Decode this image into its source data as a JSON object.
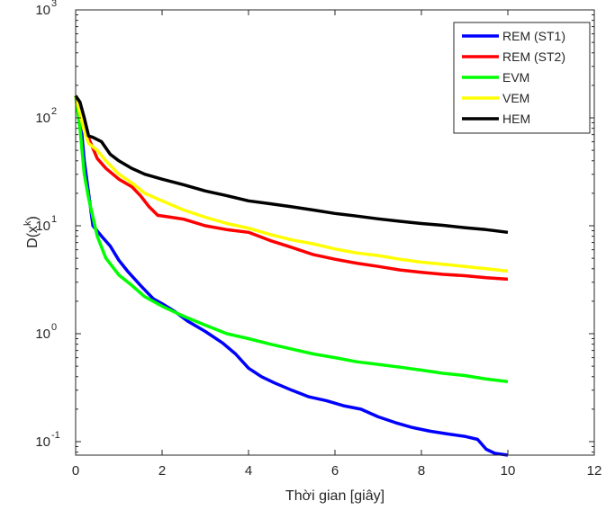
{
  "chart_data": {
    "type": "line",
    "title": "",
    "xlabel": "Thời gian [giây]",
    "ylabel_base": "D(x",
    "ylabel_sup": "k",
    "ylabel_close": ")",
    "yscale": "log",
    "xlim": [
      0,
      12
    ],
    "ylim": [
      0.075,
      1000
    ],
    "x_ticks": [
      "0",
      "2",
      "4",
      "6",
      "8",
      "10",
      "12"
    ],
    "x_tick_values": [
      0,
      2,
      4,
      6,
      8,
      10,
      12
    ],
    "y_ticks": [
      {
        "value": 0.1,
        "base": "10",
        "exp": "-1"
      },
      {
        "value": 1,
        "base": "10",
        "exp": "0"
      },
      {
        "value": 10,
        "base": "10",
        "exp": "1"
      },
      {
        "value": 100,
        "base": "10",
        "exp": "2"
      },
      {
        "value": 1000,
        "base": "10",
        "exp": "3"
      }
    ],
    "grid": false,
    "legend_position": "top-right",
    "series": [
      {
        "name": "REM (ST1)",
        "color": "#0000ff",
        "x": [
          0,
          0.1,
          0.2,
          0.3,
          0.4,
          0.6,
          0.8,
          1.0,
          1.2,
          1.5,
          1.8,
          2.0,
          2.3,
          2.6,
          3.0,
          3.4,
          3.7,
          4.0,
          4.3,
          4.6,
          5.0,
          5.4,
          5.8,
          6.2,
          6.6,
          7.0,
          7.4,
          7.8,
          8.2,
          8.6,
          9.0,
          9.3,
          9.5,
          9.7,
          10.0
        ],
        "y": [
          160,
          110,
          40,
          20,
          10,
          8,
          6.5,
          4.8,
          3.8,
          2.8,
          2.1,
          1.9,
          1.6,
          1.3,
          1.05,
          0.82,
          0.65,
          0.48,
          0.4,
          0.35,
          0.3,
          0.26,
          0.24,
          0.215,
          0.2,
          0.17,
          0.15,
          0.135,
          0.125,
          0.118,
          0.112,
          0.105,
          0.085,
          0.078,
          0.075
        ]
      },
      {
        "name": "REM (ST2)",
        "color": "#ff0000",
        "x": [
          0,
          0.1,
          0.2,
          0.3,
          0.5,
          0.7,
          1.0,
          1.3,
          1.5,
          1.7,
          1.9,
          2.2,
          2.5,
          3.0,
          3.5,
          4.0,
          4.5,
          5.0,
          5.5,
          6.0,
          6.5,
          7.0,
          7.5,
          8.0,
          8.5,
          9.0,
          9.5,
          10.0
        ],
        "y": [
          160,
          120,
          85,
          65,
          42,
          34,
          27,
          23,
          19,
          15,
          12.5,
          12,
          11.5,
          10,
          9.2,
          8.7,
          7.3,
          6.3,
          5.4,
          4.9,
          4.5,
          4.2,
          3.9,
          3.7,
          3.55,
          3.45,
          3.3,
          3.2
        ]
      },
      {
        "name": "EVM",
        "color": "#00ff00",
        "x": [
          0,
          0.1,
          0.2,
          0.3,
          0.4,
          0.5,
          0.7,
          1.0,
          1.3,
          1.6,
          2.0,
          2.5,
          3.0,
          3.5,
          4.0,
          4.5,
          5.0,
          5.5,
          6.0,
          6.5,
          7.0,
          7.5,
          8.0,
          8.5,
          9.0,
          9.5,
          10.0
        ],
        "y": [
          160,
          80,
          30,
          18,
          12,
          8,
          5,
          3.5,
          2.8,
          2.2,
          1.8,
          1.45,
          1.2,
          1.0,
          0.9,
          0.8,
          0.72,
          0.65,
          0.6,
          0.55,
          0.52,
          0.49,
          0.46,
          0.43,
          0.41,
          0.38,
          0.36
        ]
      },
      {
        "name": "VEM",
        "color": "#ffff00",
        "x": [
          0,
          0.1,
          0.2,
          0.3,
          0.5,
          0.7,
          1.0,
          1.3,
          1.6,
          2.0,
          2.5,
          3.0,
          3.5,
          4.0,
          4.5,
          5.0,
          5.5,
          6.0,
          6.5,
          7.0,
          7.5,
          8.0,
          8.5,
          9.0,
          9.5,
          10.0
        ],
        "y": [
          160,
          110,
          75,
          58,
          50,
          40,
          30,
          25,
          20,
          17,
          14,
          12,
          10.5,
          9.5,
          8.3,
          7.4,
          6.8,
          6.1,
          5.6,
          5.3,
          4.9,
          4.6,
          4.4,
          4.2,
          4.0,
          3.8
        ]
      },
      {
        "name": "HEM",
        "color": "#000000",
        "x": [
          0,
          0.1,
          0.2,
          0.3,
          0.4,
          0.6,
          0.8,
          1.0,
          1.3,
          1.6,
          2.0,
          2.5,
          3.0,
          3.5,
          4.0,
          4.5,
          5.0,
          5.5,
          6.0,
          6.5,
          7.0,
          7.5,
          8.0,
          8.5,
          9.0,
          9.5,
          10.0
        ],
        "y": [
          160,
          140,
          100,
          68,
          66,
          60,
          46,
          40,
          34,
          30,
          27,
          24,
          21,
          19,
          17,
          16,
          15,
          14,
          13,
          12.3,
          11.6,
          11,
          10.5,
          10.1,
          9.6,
          9.2,
          8.7
        ]
      }
    ]
  }
}
